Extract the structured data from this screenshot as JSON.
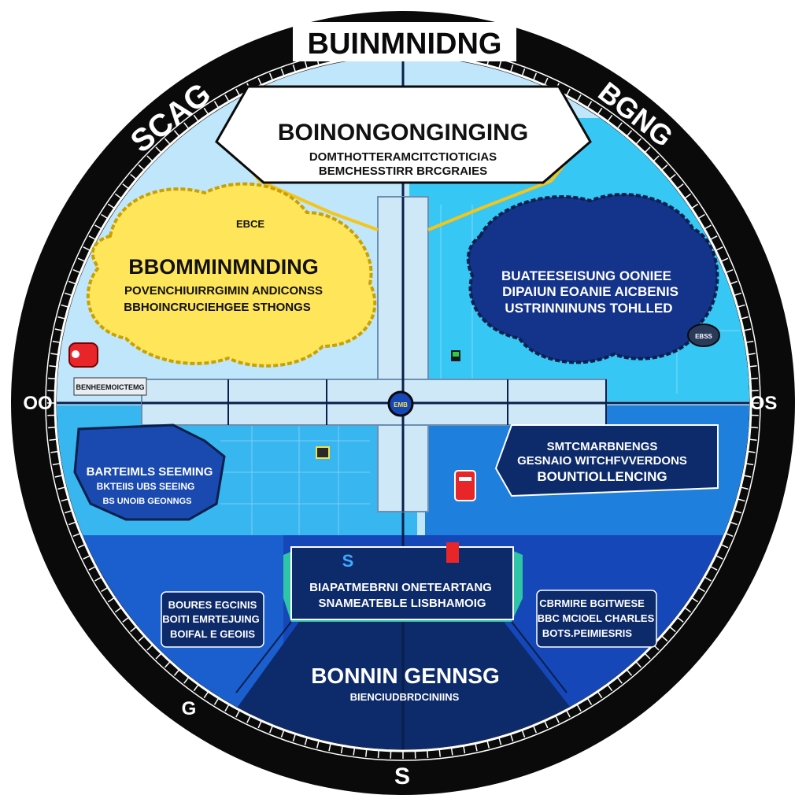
{
  "colors": {
    "ring": "#0a0a0a",
    "tick": "#ffffff",
    "sky": "#bfe6fb",
    "cyan": "#37c7f4",
    "mid_blue": "#1f7fdc",
    "deep_blue": "#1547b8",
    "navy": "#0d2a6b",
    "yellow_zone": "#ffe55a",
    "white_panel": "#ffffff",
    "road": "#cfe8f8",
    "marker_red": "#e8262a"
  },
  "ring": {
    "title_top": "BUINMNIDNG",
    "label_upper_left": "SCAG",
    "label_upper_right": "BGNG",
    "label_west": "OO",
    "label_east": "OS",
    "label_lower_left": "G",
    "label_south": "S"
  },
  "top_panel": {
    "title": "BOINONGONGINGING",
    "line1": "DOMTHOTTERAMCITCTIOTICIAS",
    "line2": "BEMCHESSTIRR BRCGRAIES"
  },
  "yellow_zone": {
    "tag": "EBCE",
    "title": "BBOMMINMNDING",
    "line1": "POVENCHIUIRRGIMIN ANDICONSS",
    "line2": "BBHOINCRUCIEHGEE STHONGS"
  },
  "navy_zone": {
    "line1": "BUATEESEISUNG OONIEE",
    "line2": "DIPAIUN EOANIE AICBENIS",
    "line3": "USTRINNINUNS TOHLLED"
  },
  "small_badge_ne": "EBSS",
  "center_badge": "EMB",
  "left_small_caption": "BENHEEMOICTEMG",
  "left_zone": {
    "line1": "BARTEIMLS SEEMING",
    "line2": "BKTEIIS UBS SEEING",
    "line3": "BS UNOIB GEONNGS"
  },
  "right_panel": {
    "line1": "SMTCMARBNENGS",
    "line2": "GESNAIO WITCHFVVERDONS",
    "line3": "BOUNTIOLLENCING"
  },
  "center_panel": {
    "icon_letter": "S",
    "line1": "BIAPATMEBRNI ONETEARTANG",
    "line2": "SNAMEATEBLE LISBHAMOIG"
  },
  "lower_left_box": {
    "line1": "BOURES EGCINIS",
    "line2": "BOITI EMRTEJUING",
    "line3": "BOIFAL E GEOIIS"
  },
  "lower_right_box": {
    "line1": "CBRMIRE BGITWESE",
    "line2": "BBC MCIOEL CHARLES",
    "line3": "BOTS.PEIMIESRIS"
  },
  "bottom_panel": {
    "title": "BONNIN GENNSG",
    "line1": "BIENCIUDBRDCINIINS"
  }
}
